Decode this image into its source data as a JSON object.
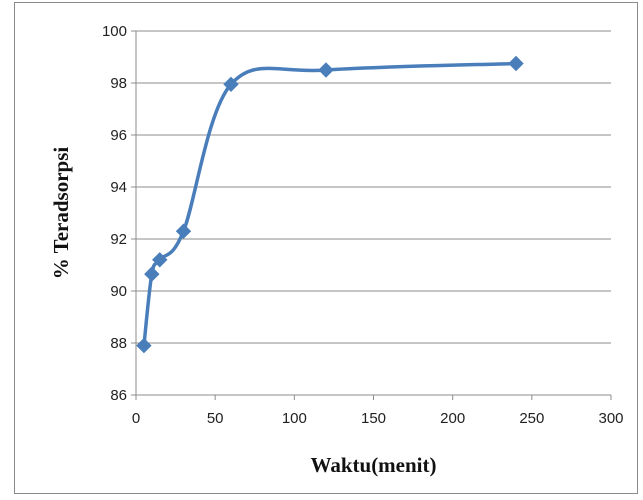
{
  "chart_data": {
    "type": "line",
    "title": "",
    "xlabel": "Waktu(menit)",
    "ylabel": "% Teradsorpsi",
    "xlim": [
      0,
      300
    ],
    "ylim": [
      86,
      100
    ],
    "x_ticks": [
      0,
      50,
      100,
      150,
      200,
      250,
      300
    ],
    "y_ticks": [
      86,
      88,
      90,
      92,
      94,
      96,
      98,
      100
    ],
    "grid": "horizontal",
    "legend": "none",
    "marker": "diamond",
    "smooth": true,
    "series": [
      {
        "color": "#4a7ebb",
        "x": [
          5,
          10,
          15,
          30,
          60,
          120,
          240
        ],
        "y": [
          87.9,
          90.65,
          91.2,
          92.3,
          97.95,
          98.5,
          98.75
        ]
      }
    ]
  }
}
